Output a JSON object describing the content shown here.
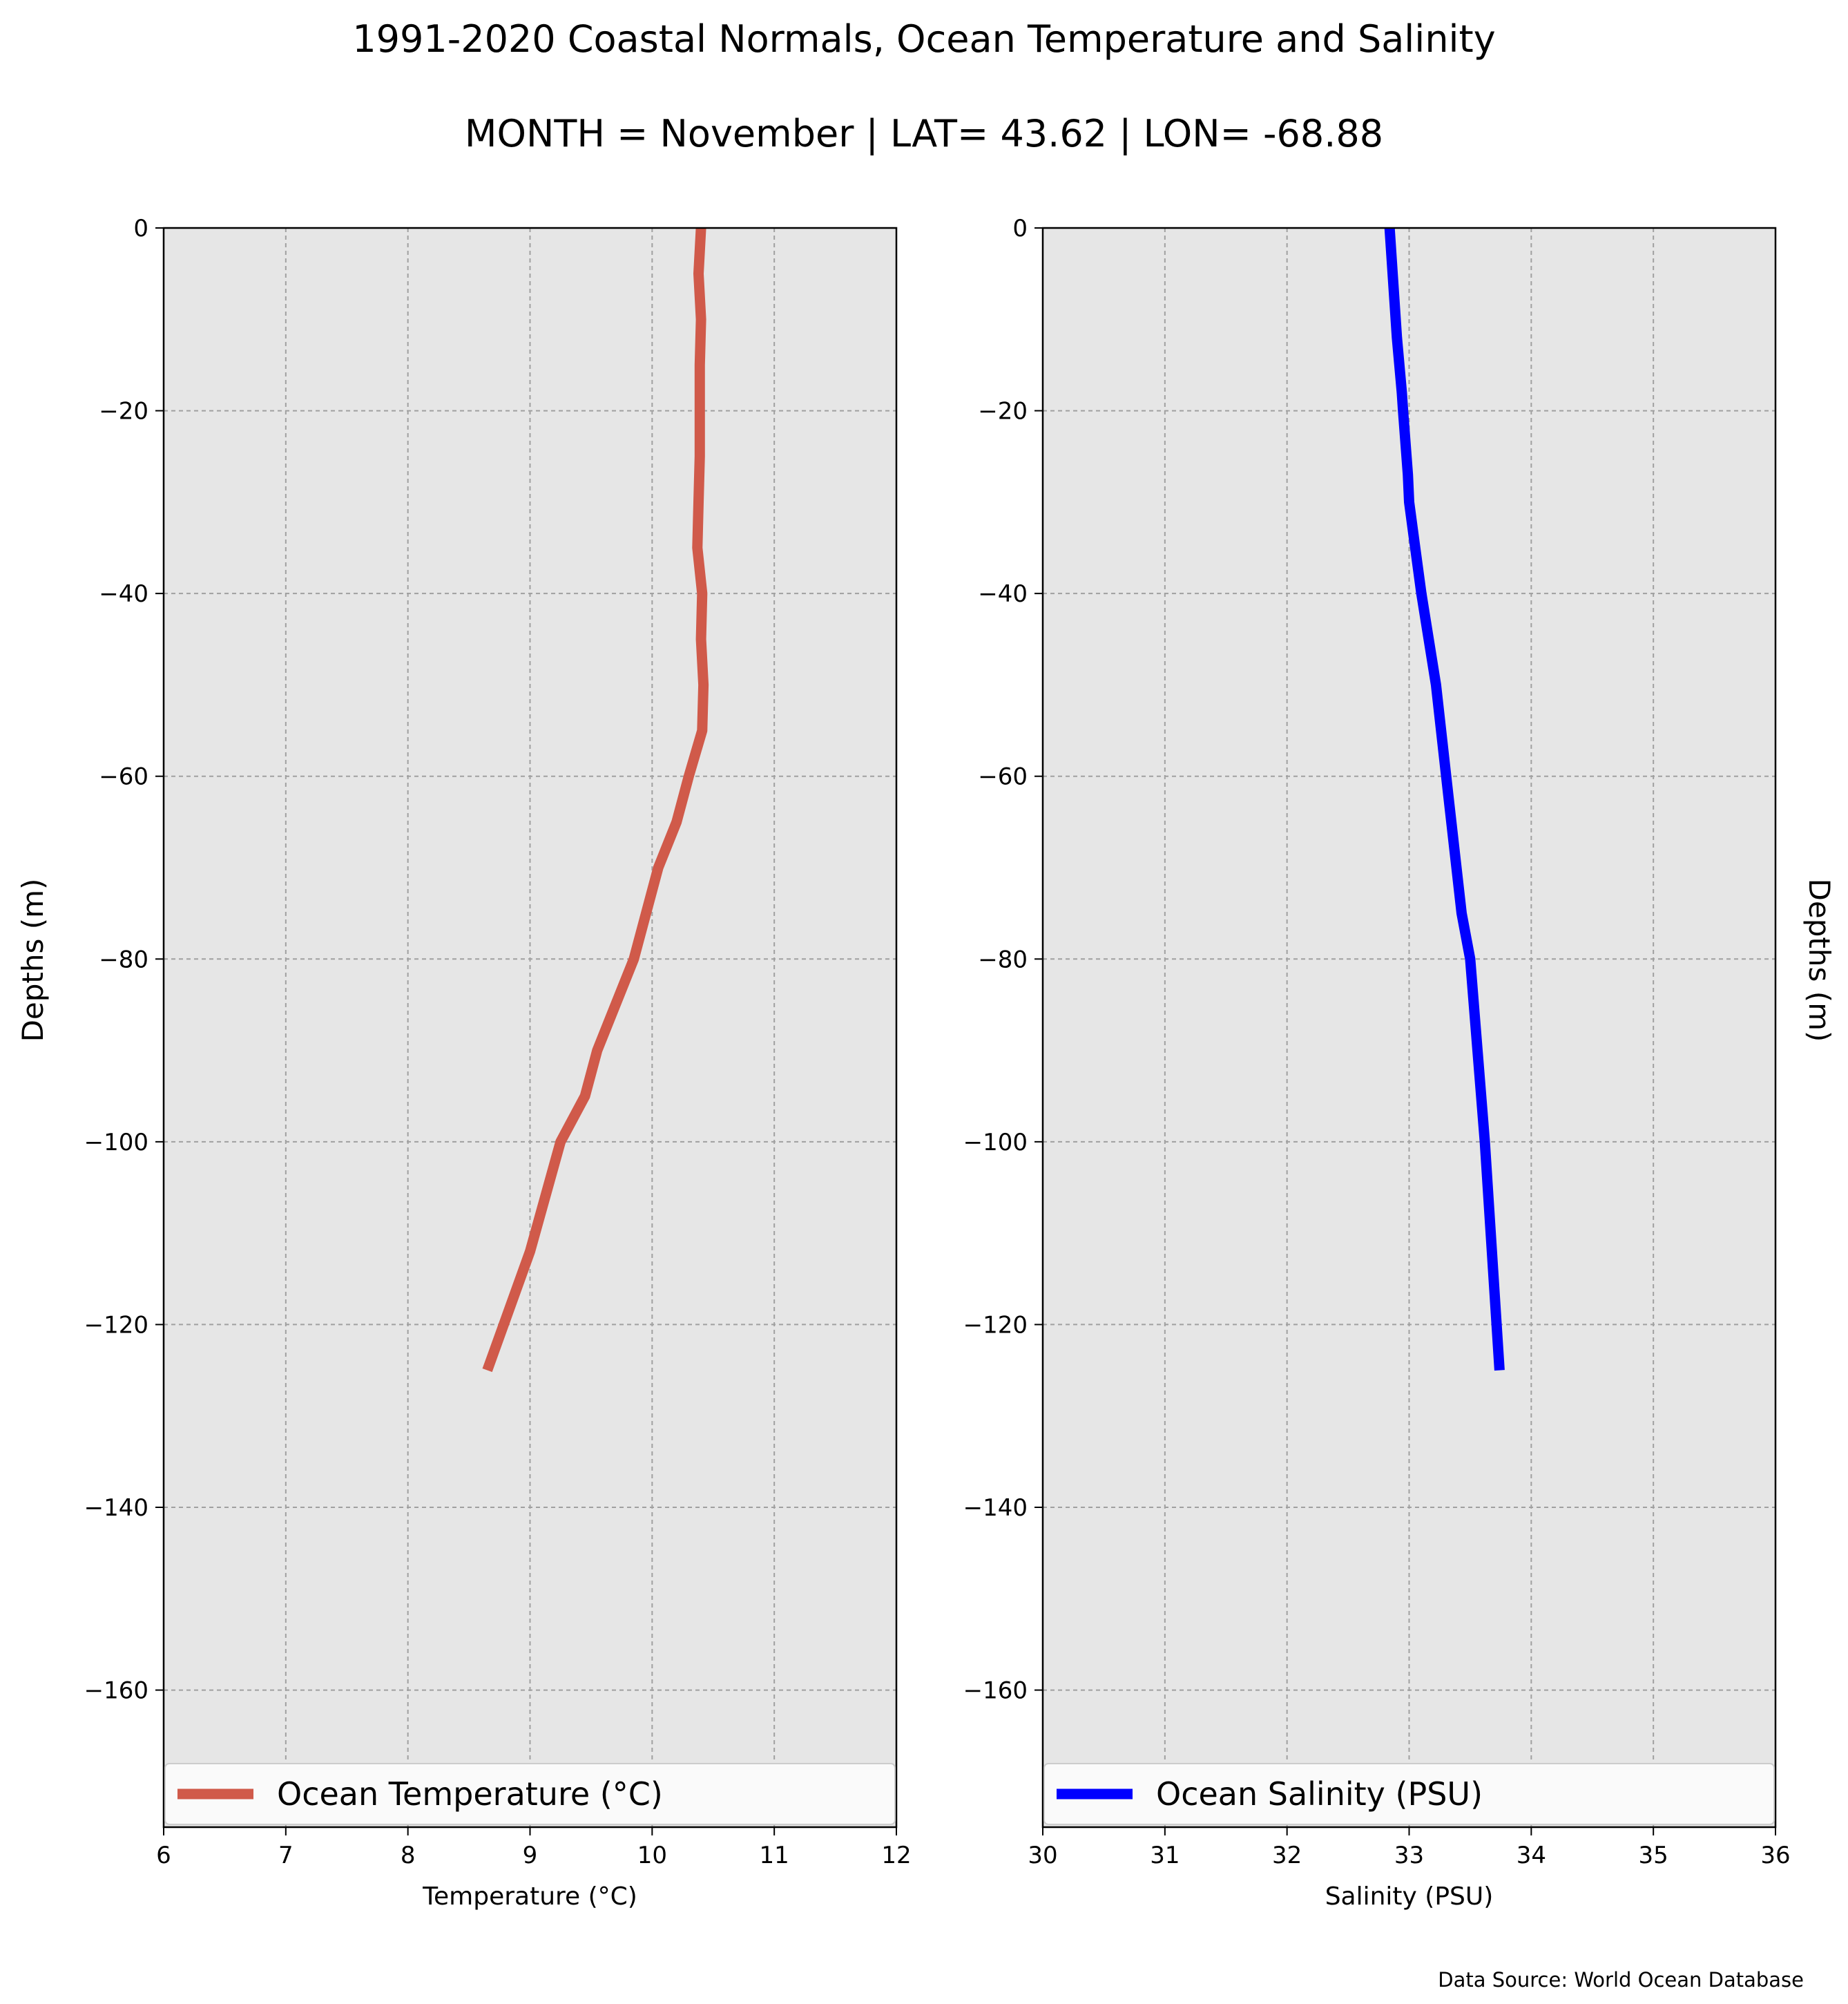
{
  "title": "1991-2020 Coastal Normals, Ocean Temperature and Salinity",
  "subtitle": "MONTH = November | LAT= 43.62 | LON= -68.88",
  "source_note": "Data Source: World Ocean Database",
  "chart_data": [
    {
      "type": "line",
      "xlabel": "Temperature (°C)",
      "ylabel": "Depths (m)",
      "xlim": [
        6,
        12
      ],
      "ylim": [
        -175,
        0
      ],
      "xticks": [
        6,
        7,
        8,
        9,
        10,
        11,
        12
      ],
      "yticks": [
        0,
        -20,
        -40,
        -60,
        -80,
        -100,
        -120,
        -140,
        -160
      ],
      "grid": true,
      "legend_position": "lower-left",
      "series": [
        {
          "name": "Ocean Temperature (°C)",
          "color": "#d05a4a",
          "x": [
            10.4,
            10.38,
            10.4,
            10.39,
            10.39,
            10.39,
            10.38,
            10.37,
            10.41,
            10.4,
            10.42,
            10.41,
            10.3,
            10.2,
            10.05,
            9.85,
            9.7,
            9.55,
            9.45,
            9.25,
            9.0,
            8.65
          ],
          "y": [
            0,
            -5,
            -10,
            -15,
            -20,
            -25,
            -30,
            -35,
            -40,
            -45,
            -50,
            -55,
            -60,
            -65,
            -70,
            -80,
            -85,
            -90,
            -95,
            -100,
            -112,
            -125
          ]
        }
      ]
    },
    {
      "type": "line",
      "xlabel": "Salinity (PSU)",
      "ylabel": "Depths (m)",
      "xlim": [
        30,
        36
      ],
      "ylim": [
        -175,
        0
      ],
      "xticks": [
        30,
        31,
        32,
        33,
        34,
        35,
        36
      ],
      "yticks": [
        0,
        -20,
        -40,
        -60,
        -80,
        -100,
        -120,
        -140,
        -160
      ],
      "grid": true,
      "legend_position": "lower-left",
      "series": [
        {
          "name": "Ocean Salinity (PSU)",
          "color": "#0000ff",
          "x": [
            32.84,
            32.87,
            32.9,
            32.94,
            32.95,
            32.99,
            33.0,
            33.05,
            33.1,
            33.22,
            33.32,
            33.43,
            33.5,
            33.62,
            33.74
          ],
          "y": [
            0,
            -6,
            -12,
            -18,
            -20,
            -27,
            -30,
            -35,
            -40,
            -50,
            -62,
            -75,
            -80,
            -100,
            -125
          ]
        }
      ]
    }
  ]
}
